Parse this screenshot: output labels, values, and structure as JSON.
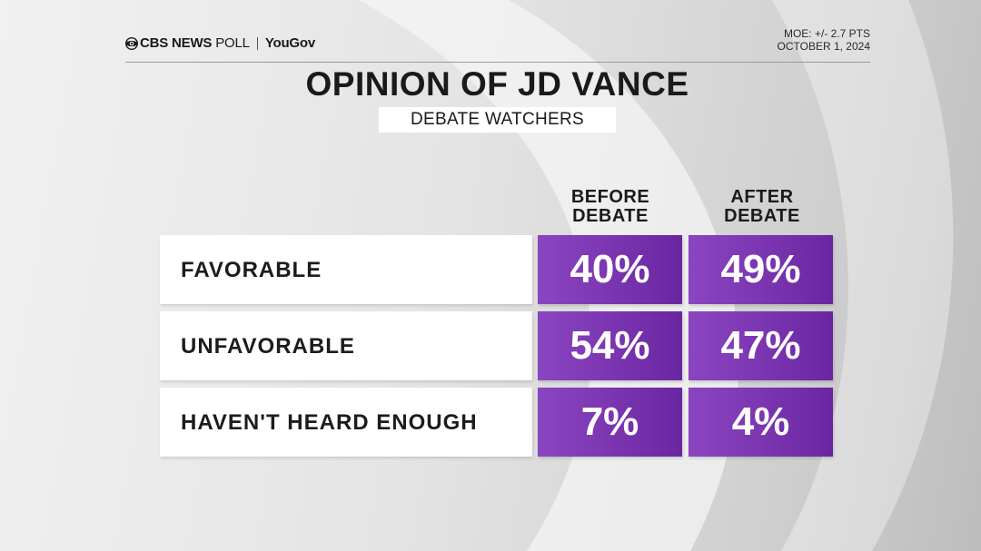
{
  "header": {
    "brand_cbs": "CBS NEWS",
    "brand_poll": "POLL",
    "brand_yougov": "YouGov",
    "moe": "MOE: +/- 2.7 PTS",
    "date": "OCTOBER 1, 2024"
  },
  "colors": {
    "cell_purple": "#7a34b0",
    "row_label_bg": "#ffffff",
    "text_dark": "#1a1a1a"
  },
  "chart_data": {
    "type": "table",
    "title": "OPINION OF JD VANCE",
    "subtitle": "DEBATE WATCHERS",
    "columns": [
      {
        "line1": "BEFORE",
        "line2": "DEBATE"
      },
      {
        "line1": "AFTER",
        "line2": "DEBATE"
      }
    ],
    "rows": [
      {
        "label": "FAVORABLE",
        "values": [
          "40%",
          "49%"
        ]
      },
      {
        "label": "UNFAVORABLE",
        "values": [
          "54%",
          "47%"
        ]
      },
      {
        "label": "HAVEN'T HEARD ENOUGH",
        "values": [
          "7%",
          "4%"
        ]
      }
    ]
  }
}
